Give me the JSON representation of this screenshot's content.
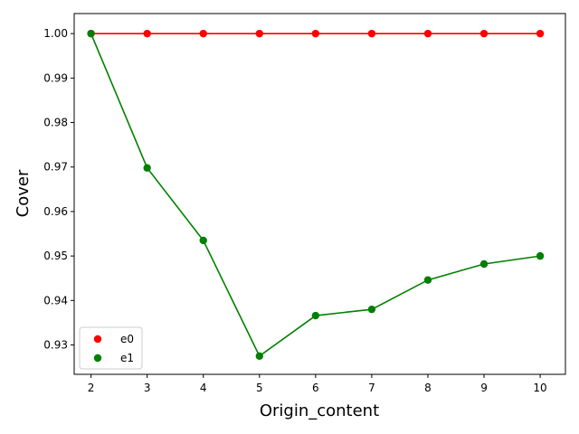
{
  "chart_data": {
    "type": "line",
    "title": "",
    "xlabel": "Origin_content",
    "ylabel": "Cover",
    "x": [
      2,
      3,
      4,
      5,
      6,
      7,
      8,
      9,
      10
    ],
    "xlim": [
      1.7,
      10.45
    ],
    "ylim": [
      0.9234,
      1.0045
    ],
    "xticks": [
      "2",
      "3",
      "4",
      "5",
      "6",
      "7",
      "8",
      "9",
      "10"
    ],
    "yticks": [
      "0.93",
      "0.94",
      "0.95",
      "0.96",
      "0.97",
      "0.98",
      "0.99",
      "1.00"
    ],
    "ytick_values": [
      0.93,
      0.94,
      0.95,
      0.96,
      0.97,
      0.98,
      0.99,
      1.0
    ],
    "grid": false,
    "legend_position": "lower-left",
    "series": [
      {
        "name": "e0",
        "color": "#ff0000",
        "marker": "circle",
        "values": [
          1.0,
          1.0,
          1.0,
          1.0,
          1.0,
          1.0,
          1.0,
          1.0,
          1.0
        ]
      },
      {
        "name": "e1",
        "color": "#008000",
        "marker": "circle",
        "values": [
          1.0,
          0.9698,
          0.9535,
          0.9275,
          0.9366,
          0.938,
          0.9446,
          0.9482,
          0.95
        ]
      }
    ]
  }
}
